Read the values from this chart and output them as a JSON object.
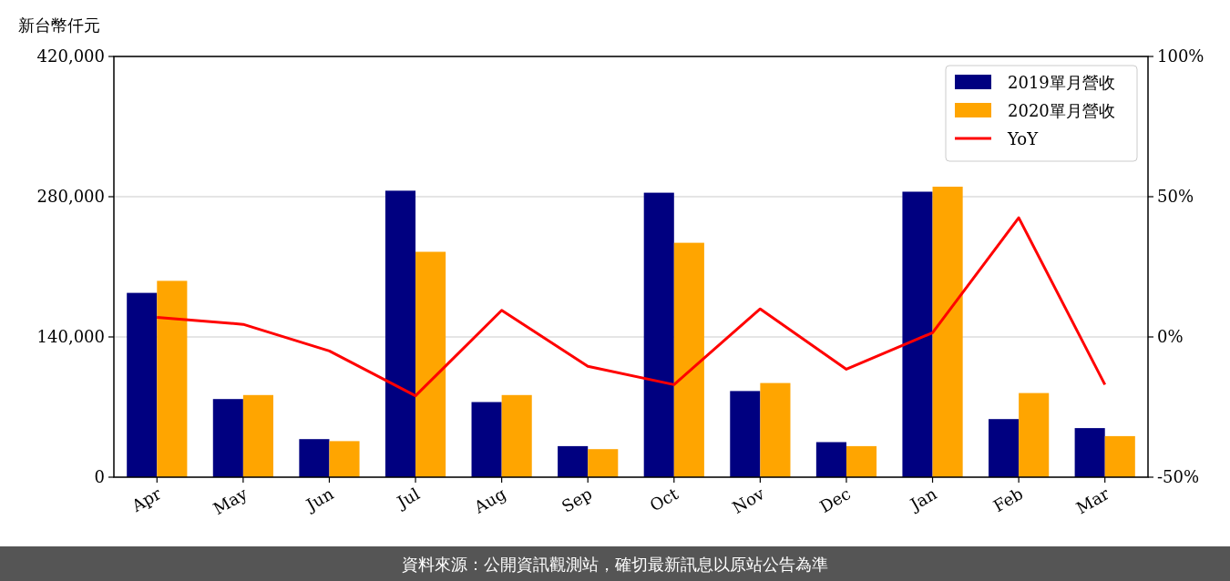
{
  "chart_data": {
    "type": "bar",
    "ylabel": "新台幣仟元",
    "categories": [
      "Apr",
      "May",
      "Jun",
      "Jul",
      "Aug",
      "Sep",
      "Oct",
      "Nov",
      "Dec",
      "Jan",
      "Feb",
      "Mar"
    ],
    "series": [
      {
        "name": "2019單月營收",
        "color": "#000080",
        "values": [
          184000,
          78000,
          38000,
          286000,
          75000,
          31000,
          284000,
          86000,
          35000,
          285000,
          58000,
          49000
        ]
      },
      {
        "name": "2020單月營收",
        "color": "#ffa500",
        "values": [
          196000,
          82000,
          36000,
          225000,
          82000,
          28000,
          234000,
          94000,
          31000,
          290000,
          84000,
          41000
        ]
      },
      {
        "name": "YoY",
        "type": "line",
        "axis": "y2",
        "color": "#ff0000",
        "values": [
          7,
          4.5,
          -5,
          -21,
          9.5,
          -10.5,
          -17,
          10,
          -11.5,
          1.5,
          42.5,
          -17
        ]
      }
    ],
    "ylim": [
      0,
      420000
    ],
    "yticks": [
      {
        "value": 0,
        "label": "0"
      },
      {
        "value": 140000,
        "label": "140,000"
      },
      {
        "value": 280000,
        "label": "280,000"
      },
      {
        "value": 420000,
        "label": "420,000"
      }
    ],
    "y2lim": [
      -50,
      100
    ],
    "y2ticks": [
      {
        "value": -50,
        "label": "-50%"
      },
      {
        "value": 0,
        "label": "0%"
      },
      {
        "value": 50,
        "label": "50%"
      },
      {
        "value": 100,
        "label": "100%"
      }
    ],
    "grid": "y",
    "legend": "top right",
    "line_style": "solid",
    "marker": "none",
    "annotations": [
      "資料來源：公開資訊觀測站，確切最新訊息以原站公告為準"
    ]
  }
}
